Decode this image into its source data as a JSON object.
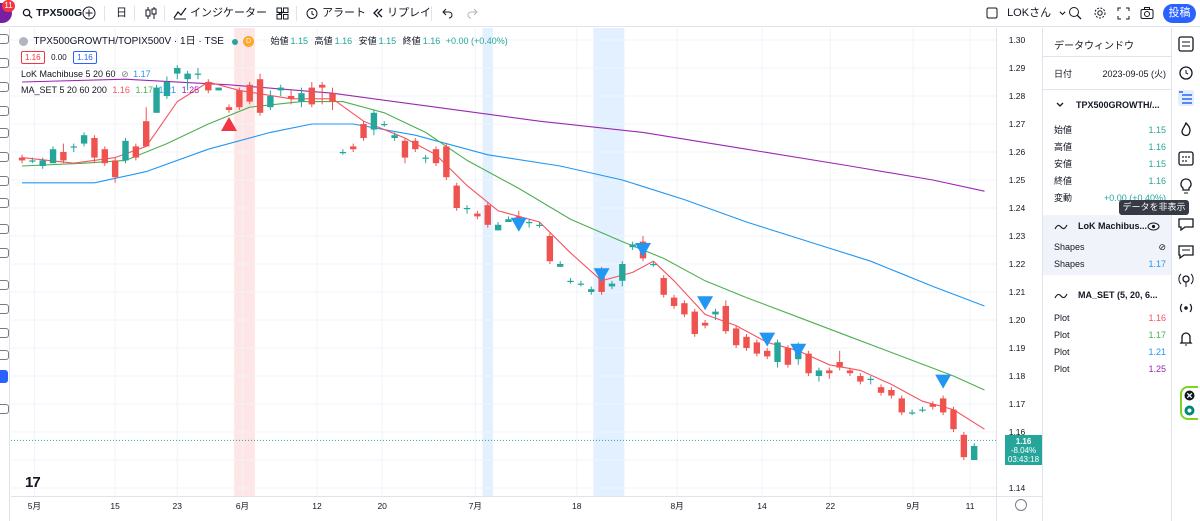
{
  "toolbar": {
    "notification_count": "11",
    "symbol": "TPX500G",
    "interval": "日",
    "indicators_label": "インジケーター",
    "alert_label": "アラート",
    "replay_label": "リプレイ",
    "user_label": "LOKさん",
    "post_label": "投稿"
  },
  "chart": {
    "title": "TPX500GROWTH/TOPIX500V · 1日 · TSE",
    "badge": "D",
    "ohlc": {
      "open_label": "始値",
      "open": "1.15",
      "high_label": "高値",
      "high": "1.16",
      "low_label": "安値",
      "low": "1.15",
      "close_label": "終値",
      "close": "1.16",
      "change": "+0.00 (+0.40%)"
    },
    "bid": "1.16",
    "spread": "0.00",
    "ask": "1.16",
    "indicator1": {
      "name": "LoK Machibuse 5 20 60",
      "value": "1.17"
    },
    "indicator2": {
      "name": "MA_SET 5 20 60 200",
      "v1": "1.16",
      "v2": "1.17",
      "v3": "1.21",
      "v4": "1.25"
    },
    "price_tag": {
      "price": "1.16",
      "change": "-8.04%",
      "countdown": "03:43:18"
    },
    "logo": "17",
    "colors": {
      "up": "#26a69a",
      "down": "#ef5350",
      "ma5": "#f7525f",
      "ma20": "#4caf50",
      "ma60": "#2196f3",
      "ma200": "#9c27b0",
      "signal_down": "#2196f3",
      "signal_up": "#f23645"
    }
  },
  "chart_data": {
    "type": "candlestick",
    "ylim": [
      1.135,
      1.305
    ],
    "y_ticks": [
      "1.30",
      "1.29",
      "1.28",
      "1.27",
      "1.26",
      "1.25",
      "1.24",
      "1.23",
      "1.22",
      "1.21",
      "1.20",
      "1.19",
      "1.18",
      "1.17",
      "1.16",
      "1.15",
      "1.14"
    ],
    "x_ticks": [
      {
        "label": "5月",
        "index": 1.2
      },
      {
        "label": "15",
        "index": 9
      },
      {
        "label": "23",
        "index": 15
      },
      {
        "label": "6月",
        "index": 21.3
      },
      {
        "label": "12",
        "index": 28.5
      },
      {
        "label": "20",
        "index": 34.8
      },
      {
        "label": "7月",
        "index": 43.8
      },
      {
        "label": "18",
        "index": 53.6
      },
      {
        "label": "8月",
        "index": 63.3
      },
      {
        "label": "14",
        "index": 71.5
      },
      {
        "label": "22",
        "index": 78.1
      },
      {
        "label": "9月",
        "index": 86.1
      },
      {
        "label": "11",
        "index": 91.6
      }
    ],
    "candles": [
      [
        1.258,
        1.259,
        1.256,
        1.257
      ],
      [
        1.257,
        1.258,
        1.256,
        1.257
      ],
      [
        1.255,
        1.258,
        1.254,
        1.257
      ],
      [
        1.256,
        1.262,
        1.256,
        1.261
      ],
      [
        1.26,
        1.263,
        1.256,
        1.257
      ],
      [
        1.262,
        1.263,
        1.26,
        1.262
      ],
      [
        1.263,
        1.267,
        1.262,
        1.266
      ],
      [
        1.265,
        1.266,
        1.256,
        1.258
      ],
      [
        1.261,
        1.262,
        1.255,
        1.256
      ],
      [
        1.257,
        1.258,
        1.249,
        1.251
      ],
      [
        1.257,
        1.265,
        1.256,
        1.264
      ],
      [
        1.262,
        1.263,
        1.257,
        1.258
      ],
      [
        1.271,
        1.276,
        1.262,
        1.262
      ],
      [
        1.274,
        1.284,
        1.274,
        1.283
      ],
      [
        1.28,
        1.287,
        1.279,
        1.285
      ],
      [
        1.288,
        1.291,
        1.286,
        1.29
      ],
      [
        1.286,
        1.289,
        1.282,
        1.288
      ],
      [
        1.288,
        1.29,
        1.286,
        1.288
      ],
      [
        1.285,
        1.286,
        1.281,
        1.282
      ],
      [
        1.282,
        1.283,
        1.282,
        1.283
      ],
      [
        1.276,
        1.277,
        1.274,
        1.275
      ],
      [
        1.282,
        1.283,
        1.275,
        1.276
      ],
      [
        1.284,
        1.285,
        1.277,
        1.278
      ],
      [
        1.286,
        1.288,
        1.273,
        1.274
      ],
      [
        1.276,
        1.282,
        1.275,
        1.28
      ],
      [
        1.282,
        1.284,
        1.28,
        1.283
      ],
      [
        1.28,
        1.282,
        1.277,
        1.279
      ],
      [
        1.278,
        1.283,
        1.276,
        1.281
      ],
      [
        1.283,
        1.285,
        1.276,
        1.277
      ],
      [
        1.284,
        1.285,
        1.277,
        1.283
      ],
      [
        1.281,
        1.283,
        1.275,
        1.278
      ],
      [
        1.26,
        1.261,
        1.259,
        1.26
      ],
      [
        1.262,
        1.263,
        1.26,
        1.261
      ],
      [
        1.27,
        1.271,
        1.264,
        1.265
      ],
      [
        1.268,
        1.275,
        1.266,
        1.274
      ],
      [
        1.27,
        1.271,
        1.269,
        1.27
      ],
      [
        1.265,
        1.267,
        1.264,
        1.266
      ],
      [
        1.264,
        1.265,
        1.256,
        1.258
      ],
      [
        1.264,
        1.265,
        1.26,
        1.261
      ],
      [
        1.258,
        1.259,
        1.256,
        1.258
      ],
      [
        1.261,
        1.262,
        1.255,
        1.256
      ],
      [
        1.262,
        1.263,
        1.25,
        1.251
      ],
      [
        1.248,
        1.249,
        1.239,
        1.24
      ],
      [
        1.24,
        1.241,
        1.238,
        1.24
      ],
      [
        1.238,
        1.239,
        1.236,
        1.237
      ],
      [
        1.241,
        1.242,
        1.233,
        1.234
      ],
      [
        1.232,
        1.235,
        1.232,
        1.234
      ],
      [
        1.235,
        1.237,
        1.235,
        1.236
      ],
      [
        1.237,
        1.239,
        1.232,
        1.236
      ],
      [
        1.235,
        1.236,
        1.233,
        1.235
      ],
      [
        1.234,
        1.235,
        1.233,
        1.234
      ],
      [
        1.23,
        1.231,
        1.22,
        1.221
      ],
      [
        1.219,
        1.221,
        1.219,
        1.22
      ],
      [
        1.214,
        1.215,
        1.213,
        1.214
      ],
      [
        1.213,
        1.214,
        1.212,
        1.213
      ],
      [
        1.21,
        1.212,
        1.209,
        1.211
      ],
      [
        1.218,
        1.219,
        1.209,
        1.21
      ],
      [
        1.212,
        1.214,
        1.211,
        1.213
      ],
      [
        1.214,
        1.221,
        1.212,
        1.22
      ],
      [
        1.226,
        1.228,
        1.225,
        1.227
      ],
      [
        1.228,
        1.23,
        1.221,
        1.222
      ],
      [
        1.22,
        1.221,
        1.219,
        1.22
      ],
      [
        1.215,
        1.216,
        1.208,
        1.209
      ],
      [
        1.208,
        1.209,
        1.204,
        1.205
      ],
      [
        1.206,
        1.207,
        1.201,
        1.202
      ],
      [
        1.203,
        1.204,
        1.194,
        1.195
      ],
      [
        1.199,
        1.2,
        1.197,
        1.198
      ],
      [
        1.202,
        1.204,
        1.2,
        1.203
      ],
      [
        1.205,
        1.207,
        1.195,
        1.196
      ],
      [
        1.197,
        1.198,
        1.19,
        1.191
      ],
      [
        1.194,
        1.195,
        1.189,
        1.19
      ],
      [
        1.192,
        1.193,
        1.187,
        1.188
      ],
      [
        1.189,
        1.19,
        1.186,
        1.187
      ],
      [
        1.185,
        1.193,
        1.183,
        1.192
      ],
      [
        1.19,
        1.191,
        1.183,
        1.184
      ],
      [
        1.186,
        1.192,
        1.184,
        1.191
      ],
      [
        1.188,
        1.189,
        1.18,
        1.181
      ],
      [
        1.18,
        1.183,
        1.178,
        1.182
      ],
      [
        1.182,
        1.183,
        1.179,
        1.181
      ],
      [
        1.185,
        1.189,
        1.182,
        1.183
      ],
      [
        1.182,
        1.183,
        1.18,
        1.181
      ],
      [
        1.18,
        1.181,
        1.177,
        1.178
      ],
      [
        1.179,
        1.18,
        1.177,
        1.179
      ],
      [
        1.176,
        1.177,
        1.173,
        1.174
      ],
      [
        1.175,
        1.176,
        1.172,
        1.173
      ],
      [
        1.172,
        1.173,
        1.166,
        1.167
      ],
      [
        1.167,
        1.168,
        1.166,
        1.167
      ],
      [
        1.168,
        1.169,
        1.167,
        1.168
      ],
      [
        1.17,
        1.171,
        1.168,
        1.169
      ],
      [
        1.172,
        1.173,
        1.166,
        1.167
      ],
      [
        1.168,
        1.169,
        1.16,
        1.161
      ],
      [
        1.159,
        1.16,
        1.15,
        1.151
      ],
      [
        1.15,
        1.156,
        1.15,
        1.155
      ]
    ],
    "ma5": [
      [
        0,
        1.258
      ],
      [
        5,
        1.256
      ],
      [
        9,
        1.258
      ],
      [
        12,
        1.262
      ],
      [
        15,
        1.278
      ],
      [
        18,
        1.285
      ],
      [
        21,
        1.282
      ],
      [
        26,
        1.279
      ],
      [
        30,
        1.279
      ],
      [
        33,
        1.271
      ],
      [
        37,
        1.265
      ],
      [
        40,
        1.259
      ],
      [
        43,
        1.248
      ],
      [
        46,
        1.239
      ],
      [
        50,
        1.235
      ],
      [
        53,
        1.224
      ],
      [
        56,
        1.214
      ],
      [
        59,
        1.217
      ],
      [
        61,
        1.221
      ],
      [
        63,
        1.214
      ],
      [
        66,
        1.202
      ],
      [
        69,
        1.198
      ],
      [
        72,
        1.192
      ],
      [
        75,
        1.189
      ],
      [
        78,
        1.184
      ],
      [
        81,
        1.182
      ],
      [
        84,
        1.177
      ],
      [
        87,
        1.171
      ],
      [
        90,
        1.168
      ],
      [
        93,
        1.161
      ]
    ],
    "ma20": [
      [
        0,
        1.255
      ],
      [
        6,
        1.256
      ],
      [
        10,
        1.257
      ],
      [
        14,
        1.263
      ],
      [
        18,
        1.27
      ],
      [
        22,
        1.276
      ],
      [
        27,
        1.278
      ],
      [
        31,
        1.278
      ],
      [
        35,
        1.274
      ],
      [
        39,
        1.267
      ],
      [
        43,
        1.257
      ],
      [
        48,
        1.247
      ],
      [
        53,
        1.236
      ],
      [
        58,
        1.228
      ],
      [
        62,
        1.222
      ],
      [
        66,
        1.214
      ],
      [
        70,
        1.208
      ],
      [
        75,
        1.201
      ],
      [
        80,
        1.194
      ],
      [
        85,
        1.187
      ],
      [
        90,
        1.18
      ],
      [
        93,
        1.175
      ]
    ],
    "ma60": [
      [
        0,
        1.249
      ],
      [
        7,
        1.249
      ],
      [
        12,
        1.253
      ],
      [
        18,
        1.261
      ],
      [
        24,
        1.267
      ],
      [
        28,
        1.27
      ],
      [
        32,
        1.27
      ],
      [
        38,
        1.266
      ],
      [
        45,
        1.259
      ],
      [
        52,
        1.255
      ],
      [
        58,
        1.25
      ],
      [
        64,
        1.243
      ],
      [
        70,
        1.235
      ],
      [
        76,
        1.228
      ],
      [
        82,
        1.221
      ],
      [
        88,
        1.212
      ],
      [
        93,
        1.205
      ]
    ],
    "ma200": [
      [
        0,
        1.285
      ],
      [
        10,
        1.286
      ],
      [
        20,
        1.284
      ],
      [
        30,
        1.281
      ],
      [
        40,
        1.276
      ],
      [
        50,
        1.271
      ],
      [
        60,
        1.267
      ],
      [
        70,
        1.261
      ],
      [
        80,
        1.255
      ],
      [
        88,
        1.25
      ],
      [
        93,
        1.246
      ]
    ],
    "signals_down": [
      [
        48,
        1.234
      ],
      [
        56,
        1.216
      ],
      [
        60,
        1.225
      ],
      [
        66,
        1.206
      ],
      [
        72,
        1.193
      ],
      [
        75,
        1.189
      ],
      [
        89,
        1.178
      ]
    ],
    "signals_up": [
      [
        20,
        1.27
      ]
    ],
    "highlight_bands": [
      {
        "from": 20.5,
        "to": 22.5,
        "color": "#ffe6e6"
      },
      {
        "from": 44.5,
        "to": 45.5,
        "color": "#e3f0ff"
      },
      {
        "from": 55.2,
        "to": 58.2,
        "color": "#e3f0ff"
      }
    ],
    "last_price": 1.157
  },
  "data_window": {
    "title": "データウィンドウ",
    "date_label": "日付",
    "date_value": "2023-09-05 (火)",
    "symbol_title": "TPX500GROWTH/...",
    "rows": [
      {
        "k": "始値",
        "v": "1.15"
      },
      {
        "k": "高値",
        "v": "1.16"
      },
      {
        "k": "安値",
        "v": "1.15"
      },
      {
        "k": "終値",
        "v": "1.16"
      },
      {
        "k": "変動",
        "v": "+0.00 (+0.40%)"
      }
    ],
    "ind1_title": "LoK Machibus...",
    "ind1_rows": [
      {
        "k": "Shapes",
        "v": "⊘"
      },
      {
        "k": "Shapes",
        "v": "1.17"
      }
    ],
    "ind2_title": "MA_SET (5, 20, 6...",
    "ind2_rows": [
      {
        "k": "Plot",
        "v": "1.16"
      },
      {
        "k": "Plot",
        "v": "1.17"
      },
      {
        "k": "Plot",
        "v": "1.21"
      },
      {
        "k": "Plot",
        "v": "1.25"
      }
    ],
    "tooltip": "データを非表示"
  }
}
